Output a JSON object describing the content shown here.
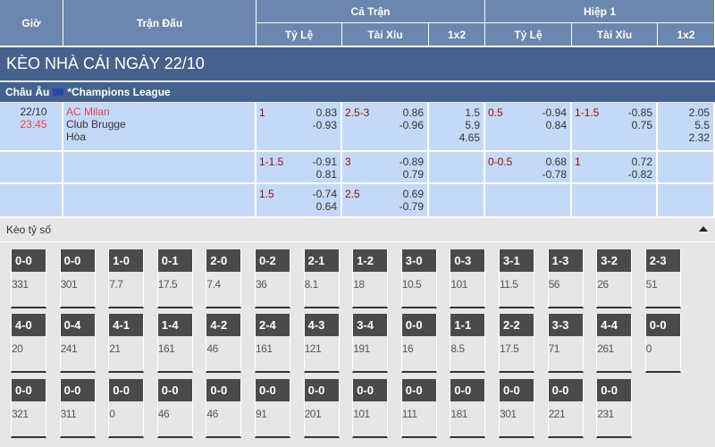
{
  "header": {
    "time": "Giờ",
    "match": "Trận Đấu",
    "full": "Cả Trận",
    "half": "Hiệp 1",
    "cols": [
      "Tỷ Lệ",
      "Tài Xỉu",
      "1x2",
      "Tỷ Lệ",
      "Tài Xỉu",
      "1x2"
    ]
  },
  "title": "KÈO NHÀ CÁI NGÀY 22/10",
  "league": {
    "region": "Châu Âu",
    "name": "*Champions League"
  },
  "match": {
    "date": "22/10",
    "time": "23:45",
    "home": "AC Milan",
    "away": "Club Brugge",
    "draw": "Hòa"
  },
  "rows": [
    {
      "hdp": "1",
      "hdp_odds": [
        "0.83",
        "-0.93"
      ],
      "ou": "2.5-3",
      "ou_odds": [
        "0.86",
        "-0.96"
      ],
      "x12": [
        "1.5",
        "5.9",
        "4.65"
      ],
      "h_hdp": "0.5",
      "h_hdp_odds": [
        "-0.94",
        "0.84"
      ],
      "h_ou": "1-1.5",
      "h_ou_odds": [
        "-0.85",
        "0.75"
      ],
      "h_x12": [
        "2.05",
        "5.5",
        "2.32"
      ]
    },
    {
      "hdp": "1-1.5",
      "hdp_odds": [
        "-0.91",
        "0.81"
      ],
      "ou": "3",
      "ou_odds": [
        "-0.89",
        "0.79"
      ],
      "x12": [
        "",
        "",
        ""
      ],
      "h_hdp": "0-0.5",
      "h_hdp_odds": [
        "0.68",
        "-0.78"
      ],
      "h_ou": "1",
      "h_ou_odds": [
        "0.72",
        "-0.82"
      ],
      "h_x12": [
        "",
        "",
        ""
      ]
    },
    {
      "hdp": "1.5",
      "hdp_odds": [
        "-0.74",
        "0.64"
      ],
      "ou": "2.5",
      "ou_odds": [
        "0.69",
        "-0.79"
      ],
      "x12": [
        "",
        "",
        ""
      ],
      "h_hdp": "",
      "h_hdp_odds": [
        "",
        ""
      ],
      "h_ou": "",
      "h_ou_odds": [
        "",
        ""
      ],
      "h_x12": [
        "",
        "",
        ""
      ]
    }
  ],
  "correct_score": {
    "label": "Kèo tỷ số",
    "tiles": [
      [
        [
          "0-0",
          "331"
        ],
        [
          "0-0",
          "301"
        ],
        [
          "1-0",
          "7.7"
        ],
        [
          "0-1",
          "17.5"
        ],
        [
          "2-0",
          "7.4"
        ],
        [
          "0-2",
          "36"
        ],
        [
          "2-1",
          "8.1"
        ],
        [
          "1-2",
          "18"
        ],
        [
          "3-0",
          "10.5"
        ],
        [
          "0-3",
          "101"
        ],
        [
          "3-1",
          "11.5"
        ],
        [
          "1-3",
          "56"
        ],
        [
          "3-2",
          "26"
        ],
        [
          "2-3",
          "51"
        ]
      ],
      [
        [
          "4-0",
          "20"
        ],
        [
          "0-4",
          "241"
        ],
        [
          "4-1",
          "21"
        ],
        [
          "1-4",
          "161"
        ],
        [
          "4-2",
          "46"
        ],
        [
          "2-4",
          "161"
        ],
        [
          "4-3",
          "121"
        ],
        [
          "3-4",
          "191"
        ],
        [
          "0-0",
          "16"
        ],
        [
          "1-1",
          "8.5"
        ],
        [
          "2-2",
          "17.5"
        ],
        [
          "3-3",
          "71"
        ],
        [
          "4-4",
          "261"
        ],
        [
          "0-0",
          "0"
        ]
      ],
      [
        [
          "0-0",
          "321"
        ],
        [
          "0-0",
          "311"
        ],
        [
          "0-0",
          "0"
        ],
        [
          "0-0",
          "46"
        ],
        [
          "0-0",
          "46"
        ],
        [
          "0-0",
          "91"
        ],
        [
          "0-0",
          "201"
        ],
        [
          "0-0",
          "101"
        ],
        [
          "0-0",
          "111"
        ],
        [
          "0-0",
          "181"
        ],
        [
          "0-0",
          "301"
        ],
        [
          "0-0",
          "221"
        ],
        [
          "0-0",
          "231"
        ]
      ]
    ]
  }
}
